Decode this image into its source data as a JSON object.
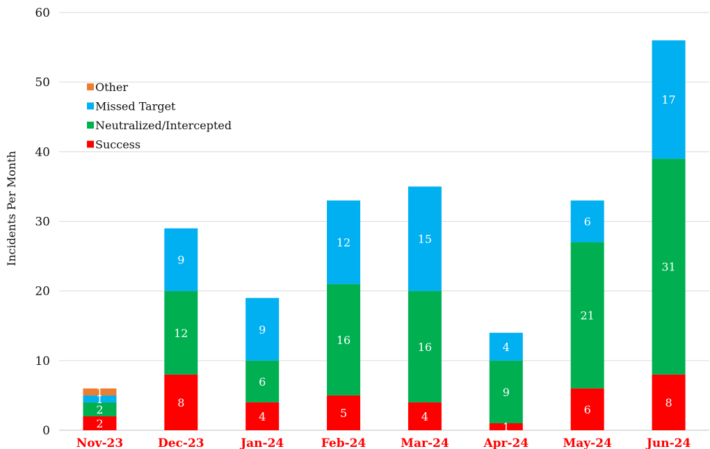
{
  "chart_data": {
    "type": "bar",
    "stacked": true,
    "categories": [
      "Nov-23",
      "Dec-23",
      "Jan-24",
      "Feb-24",
      "Mar-24",
      "Apr-24",
      "May-24",
      "Jun-24"
    ],
    "series": [
      {
        "name": "Success",
        "color": "#ff0000",
        "values": [
          2,
          8,
          4,
          5,
          4,
          1,
          6,
          8
        ]
      },
      {
        "name": "Neutralized/Intercepted",
        "color": "#00b050",
        "values": [
          2,
          12,
          6,
          16,
          16,
          9,
          21,
          31
        ]
      },
      {
        "name": "Missed Target",
        "color": "#00b0f0",
        "values": [
          1,
          9,
          9,
          12,
          15,
          4,
          6,
          17
        ]
      },
      {
        "name": "Other",
        "color": "#ed7d31",
        "values": [
          1,
          0,
          0,
          0,
          0,
          0,
          0,
          0
        ]
      }
    ],
    "title": "",
    "xlabel": "",
    "ylabel": "Incidents Per Month",
    "ylim": [
      0,
      60
    ],
    "yticks": [
      0,
      10,
      20,
      30,
      40,
      50,
      60
    ],
    "grid": true,
    "legend_placement": "top-left",
    "legend_order": [
      "Other",
      "Missed Target",
      "Neutralized/Intercepted",
      "Success"
    ],
    "xtick_color": "#ff0000",
    "gridline_color": "#d9d9d9"
  }
}
